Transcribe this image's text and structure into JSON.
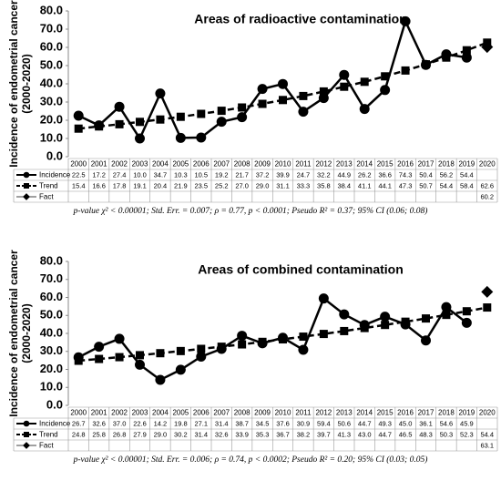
{
  "chart_data": [
    {
      "type": "line",
      "title": "Areas of radioactive contamination",
      "ylabel": [
        "Incidence of endometrial cancer",
        "(2000-2020)"
      ],
      "categories": [
        "2000",
        "2001",
        "2002",
        "2003",
        "2004",
        "2005",
        "2006",
        "2007",
        "2008",
        "2009",
        "2010",
        "2011",
        "2012",
        "2013",
        "2014",
        "2015",
        "2016",
        "2017",
        "2018",
        "2019",
        "2020"
      ],
      "series": [
        {
          "name": "Incidence",
          "color": "#000000",
          "marker": "circle",
          "line": "solid",
          "values": [
            22.5,
            17.2,
            27.4,
            10.0,
            34.7,
            10.3,
            10.5,
            19.2,
            21.7,
            37.2,
            39.9,
            24.7,
            32.2,
            44.9,
            26.2,
            36.6,
            74.3,
            50.4,
            56.2,
            54.4,
            null
          ],
          "value_labels": [
            "22.5",
            "17.2",
            "27.4",
            "10.0",
            "34.7",
            "10.3",
            "10.5",
            "19.2",
            "21.7",
            "37.2",
            "39.9",
            "24.7",
            "32.2",
            "44.9",
            "26.2",
            "36.6",
            "74.3",
            "50.4",
            "56.2",
            "54.4",
            null
          ]
        },
        {
          "name": "Trend",
          "color": "#000000",
          "marker": "square",
          "line": "dashed",
          "values": [
            15.4,
            16.6,
            17.8,
            19.1,
            20.4,
            21.9,
            23.5,
            25.2,
            27.0,
            29.0,
            31.1,
            33.3,
            35.8,
            38.4,
            41.1,
            44.1,
            47.3,
            50.7,
            54.4,
            58.4,
            62.6
          ],
          "value_labels": [
            "15.4",
            "16.6",
            "17.8",
            "19.1",
            "20.4",
            "21.9",
            "23.5",
            "25.2",
            "27.0",
            "29.0",
            "31.1",
            "33.3",
            "35.8",
            "38.4",
            "41.1",
            "44.1",
            "47.3",
            "50.7",
            "54.4",
            "58.4",
            "62.6"
          ]
        },
        {
          "name": "Fact",
          "color": "#000000",
          "marker": "diamond",
          "line": "none",
          "values": [
            null,
            null,
            null,
            null,
            null,
            null,
            null,
            null,
            null,
            null,
            null,
            null,
            null,
            null,
            null,
            null,
            null,
            null,
            null,
            null,
            60.2
          ],
          "value_labels": [
            null,
            null,
            null,
            null,
            null,
            null,
            null,
            null,
            null,
            null,
            null,
            null,
            null,
            null,
            null,
            null,
            null,
            null,
            null,
            null,
            "60.2"
          ]
        }
      ],
      "ylim": [
        0,
        80
      ],
      "yticks": [
        {
          "value": 0,
          "label": "0.0"
        },
        {
          "value": 10,
          "label": "10.0"
        },
        {
          "value": 20,
          "label": "20.0"
        },
        {
          "value": 30,
          "label": "30.0"
        },
        {
          "value": 40,
          "label": "40.0"
        },
        {
          "value": 50,
          "label": "50.0"
        },
        {
          "value": 60,
          "label": "60.0"
        },
        {
          "value": 70,
          "label": "70.0"
        },
        {
          "value": 80,
          "label": "80.0"
        }
      ],
      "grid": false,
      "footnote": "p-value χ² < 0.00001; Std. Err. = 0.007; ρ = 0.77, p < 0.0001; Pseudo R² = 0.37; 95% CI (0.06; 0.08)"
    },
    {
      "type": "line",
      "title": "Areas of combined contamination",
      "ylabel": [
        "Incidence of endometrial cancer",
        "(2000-2020)"
      ],
      "categories": [
        "2000",
        "2001",
        "2002",
        "2003",
        "2004",
        "2005",
        "2006",
        "2007",
        "2008",
        "2009",
        "2010",
        "2011",
        "2012",
        "2013",
        "2014",
        "2015",
        "2016",
        "2017",
        "2018",
        "2019",
        "2020"
      ],
      "series": [
        {
          "name": "Incidence",
          "color": "#000000",
          "marker": "circle",
          "line": "solid",
          "values": [
            26.7,
            32.6,
            37.0,
            22.6,
            14.2,
            19.8,
            27.1,
            31.4,
            38.7,
            34.5,
            37.6,
            30.9,
            59.4,
            50.6,
            44.7,
            49.3,
            45.0,
            36.1,
            54.6,
            45.9,
            null
          ],
          "value_labels": [
            "26.7",
            "32.6",
            "37.0",
            "22.6",
            "14.2",
            "19.8",
            "27.1",
            "31.4",
            "38.7",
            "34.5",
            "37.6",
            "30.9",
            "59.4",
            "50.6",
            "44.7",
            "49.3",
            "45.0",
            "36.1",
            "54.6",
            "45.9",
            null
          ]
        },
        {
          "name": "Trend",
          "color": "#000000",
          "marker": "square",
          "line": "dashed",
          "values": [
            24.8,
            25.8,
            26.8,
            27.9,
            29.0,
            30.2,
            31.4,
            32.6,
            33.9,
            35.3,
            36.7,
            38.2,
            39.7,
            41.3,
            43.0,
            44.7,
            46.5,
            48.3,
            50.3,
            52.3,
            54.4
          ],
          "value_labels": [
            "24.8",
            "25.8",
            "26.8",
            "27.9",
            "29.0",
            "30.2",
            "31.4",
            "32.6",
            "33.9",
            "35.3",
            "36.7",
            "38.2",
            "39.7",
            "41.3",
            "43.0",
            "44.7",
            "46.5",
            "48.3",
            "50.3",
            "52.3",
            "54.4"
          ]
        },
        {
          "name": "Fact",
          "color": "#000000",
          "marker": "diamond",
          "line": "none",
          "values": [
            null,
            null,
            null,
            null,
            null,
            null,
            null,
            null,
            null,
            null,
            null,
            null,
            null,
            null,
            null,
            null,
            null,
            null,
            null,
            null,
            63.1
          ],
          "value_labels": [
            null,
            null,
            null,
            null,
            null,
            null,
            null,
            null,
            null,
            null,
            null,
            null,
            null,
            null,
            null,
            null,
            null,
            null,
            null,
            null,
            "63.1"
          ]
        }
      ],
      "ylim": [
        0,
        80
      ],
      "yticks": [
        {
          "value": 0,
          "label": "0.0"
        },
        {
          "value": 10,
          "label": "10.0"
        },
        {
          "value": 20,
          "label": "20.0"
        },
        {
          "value": 30,
          "label": "30.0"
        },
        {
          "value": 40,
          "label": "40.0"
        },
        {
          "value": 50,
          "label": "50.0"
        },
        {
          "value": 60,
          "label": "60.0"
        },
        {
          "value": 70,
          "label": "70.0"
        },
        {
          "value": 80,
          "label": "80.0"
        }
      ],
      "grid": false,
      "footnote": "p-value χ² < 0.00001; Std. Err. = 0.006; ρ = 0.74, p < 0.0002; Pseudo R² = 0.20; 95% CI (0.03; 0.05)"
    }
  ]
}
